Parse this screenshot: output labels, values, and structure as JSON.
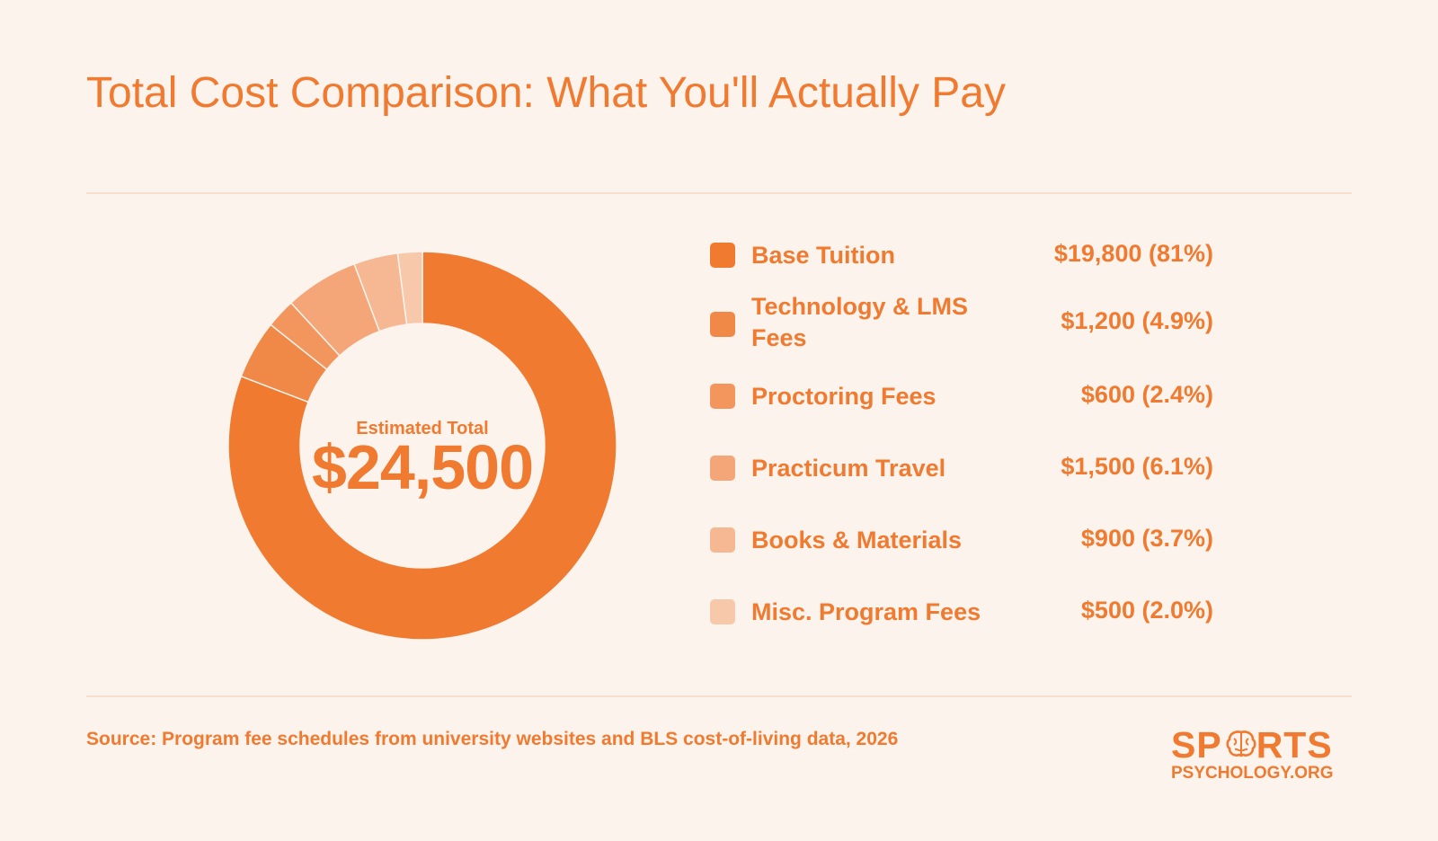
{
  "title": "Total Cost Comparison: What You'll Actually Pay",
  "center": {
    "label": "Estimated Total",
    "value": "$24,500"
  },
  "legend": [
    {
      "label": "Base Tuition",
      "value": "$19,800 (81%)",
      "color": "#ef7a30"
    },
    {
      "label": "Technology & LMS Fees",
      "value": "$1,200 (4.9%)",
      "color": "#f08847"
    },
    {
      "label": "Proctoring Fees",
      "value": "$600 (2.4%)",
      "color": "#f2965e"
    },
    {
      "label": "Practicum Travel",
      "value": "$1,500 (6.1%)",
      "color": "#f4a678"
    },
    {
      "label": "Books & Materials",
      "value": "$900 (3.7%)",
      "color": "#f6b793"
    },
    {
      "label": "Misc. Program Fees",
      "value": "$500 (2.0%)",
      "color": "#f8c8ab"
    }
  ],
  "source": "Source: Program fee schedules from university websites and BLS cost-of-living data, 2026",
  "logo": {
    "top_left": "SP",
    "top_right": "RTS",
    "bottom": "PSYCHOLOGY.ORG"
  },
  "chart_data": {
    "type": "pie",
    "categories": [
      "Base Tuition",
      "Technology & LMS Fees",
      "Proctoring Fees",
      "Practicum Travel",
      "Books & Materials",
      "Misc. Program Fees"
    ],
    "values": [
      19800,
      1200,
      600,
      1500,
      900,
      500
    ],
    "colors": [
      "#ef7a30",
      "#f08847",
      "#f2965e",
      "#f4a678",
      "#f6b793",
      "#f8c8ab"
    ],
    "total": 24500,
    "hole": "donut",
    "legend": "right"
  }
}
